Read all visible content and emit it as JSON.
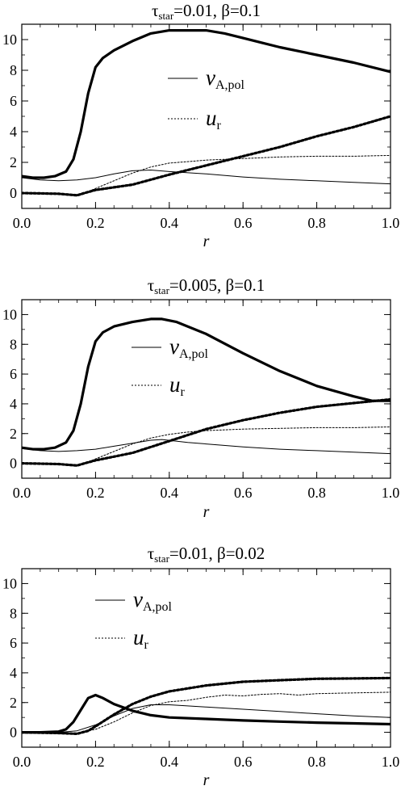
{
  "chart_data": [
    {
      "type": "line",
      "title": {
        "symbol": "τ",
        "sub": "star",
        "rest": "=0.01, β=0.1"
      },
      "xlabel": "r",
      "ylabel": "",
      "xlim": [
        0.0,
        1.0
      ],
      "ylim": [
        -1,
        11
      ],
      "xticks": [
        "0.0",
        "0.2",
        "0.4",
        "0.6",
        "0.8",
        "1.0"
      ],
      "yticks": [
        "0",
        "2",
        "4",
        "6",
        "8",
        "10"
      ],
      "legend": [
        {
          "main": "v",
          "sub": "A,pol",
          "style": "solid"
        },
        {
          "main": "u",
          "sub": "r",
          "style": "dotted"
        }
      ],
      "series": [
        {
          "name": "v_A,pol",
          "style": "solid",
          "weight": "thick",
          "x": [
            0.0,
            0.03,
            0.06,
            0.09,
            0.12,
            0.14,
            0.16,
            0.18,
            0.2,
            0.22,
            0.25,
            0.3,
            0.35,
            0.4,
            0.45,
            0.5,
            0.55,
            0.6,
            0.65,
            0.7,
            0.8,
            0.9,
            1.0
          ],
          "y": [
            1.1,
            1.0,
            1.0,
            1.1,
            1.4,
            2.2,
            4.0,
            6.5,
            8.2,
            8.8,
            9.3,
            9.9,
            10.4,
            10.6,
            10.6,
            10.6,
            10.4,
            10.1,
            9.8,
            9.5,
            9.0,
            8.5,
            7.9
          ]
        },
        {
          "name": "v_A,pol",
          "style": "solid",
          "weight": "thin",
          "x": [
            0.0,
            0.05,
            0.1,
            0.15,
            0.2,
            0.25,
            0.3,
            0.35,
            0.4,
            0.5,
            0.6,
            0.7,
            0.8,
            0.9,
            1.0
          ],
          "y": [
            1.0,
            0.85,
            0.8,
            0.85,
            1.0,
            1.25,
            1.45,
            1.5,
            1.4,
            1.25,
            1.05,
            0.9,
            0.8,
            0.7,
            0.6
          ]
        },
        {
          "name": "u_r",
          "style": "dotted",
          "weight": "thick",
          "x": [
            0.0,
            0.05,
            0.1,
            0.15,
            0.17,
            0.2,
            0.3,
            0.4,
            0.5,
            0.6,
            0.7,
            0.8,
            0.9,
            1.0
          ],
          "y": [
            0.0,
            -0.02,
            -0.05,
            -0.15,
            0.0,
            0.2,
            0.55,
            1.2,
            1.8,
            2.4,
            3.0,
            3.7,
            4.3,
            5.0
          ]
        },
        {
          "name": "u_r",
          "style": "dotted",
          "weight": "thin",
          "x": [
            0.0,
            0.05,
            0.1,
            0.15,
            0.17,
            0.2,
            0.25,
            0.3,
            0.35,
            0.4,
            0.45,
            0.5,
            0.6,
            0.7,
            0.8,
            0.9,
            1.0
          ],
          "y": [
            0.0,
            -0.02,
            -0.05,
            -0.1,
            0.0,
            0.3,
            0.8,
            1.3,
            1.7,
            1.95,
            2.05,
            2.15,
            2.25,
            2.35,
            2.4,
            2.4,
            2.45
          ]
        }
      ]
    },
    {
      "type": "line",
      "title": {
        "symbol": "τ",
        "sub": "star",
        "rest": "=0.005, β=0.1"
      },
      "xlabel": "r",
      "ylabel": "",
      "xlim": [
        0.0,
        1.0
      ],
      "ylim": [
        -1,
        11
      ],
      "xticks": [
        "0.0",
        "0.2",
        "0.4",
        "0.6",
        "0.8",
        "1.0"
      ],
      "yticks": [
        "0",
        "2",
        "4",
        "6",
        "8",
        "10"
      ],
      "legend": [
        {
          "main": "v",
          "sub": "A,pol",
          "style": "solid"
        },
        {
          "main": "u",
          "sub": "r",
          "style": "dotted"
        }
      ],
      "series": [
        {
          "name": "v_A,pol",
          "style": "solid",
          "weight": "thick",
          "x": [
            0.0,
            0.03,
            0.06,
            0.09,
            0.12,
            0.14,
            0.16,
            0.18,
            0.2,
            0.22,
            0.25,
            0.3,
            0.35,
            0.38,
            0.42,
            0.5,
            0.6,
            0.7,
            0.8,
            0.9,
            0.95,
            1.0
          ],
          "y": [
            1.05,
            0.95,
            0.95,
            1.05,
            1.4,
            2.2,
            4.0,
            6.5,
            8.2,
            8.8,
            9.2,
            9.5,
            9.7,
            9.7,
            9.5,
            8.7,
            7.4,
            6.2,
            5.2,
            4.5,
            4.2,
            4.2
          ]
        },
        {
          "name": "v_A,pol",
          "style": "solid",
          "weight": "thin",
          "x": [
            0.0,
            0.05,
            0.1,
            0.15,
            0.2,
            0.25,
            0.3,
            0.35,
            0.38,
            0.45,
            0.5,
            0.6,
            0.7,
            0.8,
            0.9,
            1.0
          ],
          "y": [
            1.0,
            0.85,
            0.8,
            0.85,
            0.95,
            1.15,
            1.35,
            1.55,
            1.6,
            1.4,
            1.3,
            1.1,
            0.95,
            0.85,
            0.75,
            0.65
          ]
        },
        {
          "name": "u_r",
          "style": "dotted",
          "weight": "thick",
          "x": [
            0.0,
            0.05,
            0.1,
            0.15,
            0.17,
            0.2,
            0.3,
            0.4,
            0.5,
            0.6,
            0.7,
            0.8,
            0.9,
            1.0
          ],
          "y": [
            0.0,
            -0.02,
            -0.05,
            -0.15,
            0.0,
            0.2,
            0.7,
            1.5,
            2.3,
            2.9,
            3.4,
            3.8,
            4.05,
            4.3
          ]
        },
        {
          "name": "u_r",
          "style": "dotted",
          "weight": "thin",
          "x": [
            0.0,
            0.05,
            0.1,
            0.15,
            0.17,
            0.2,
            0.25,
            0.3,
            0.35,
            0.4,
            0.45,
            0.5,
            0.6,
            0.7,
            0.8,
            0.9,
            1.0
          ],
          "y": [
            0.0,
            -0.02,
            -0.05,
            -0.1,
            0.0,
            0.3,
            0.8,
            1.3,
            1.7,
            1.95,
            2.1,
            2.2,
            2.3,
            2.35,
            2.4,
            2.4,
            2.45
          ]
        }
      ]
    },
    {
      "type": "line",
      "title": {
        "symbol": "τ",
        "sub": "star",
        "rest": "=0.01, β=0.02"
      },
      "xlabel": "r",
      "ylabel": "",
      "xlim": [
        0.0,
        1.0
      ],
      "ylim": [
        -1,
        11
      ],
      "xticks": [
        "0.0",
        "0.2",
        "0.4",
        "0.6",
        "0.8",
        "1.0"
      ],
      "yticks": [
        "0",
        "2",
        "4",
        "6",
        "8",
        "10"
      ],
      "legend": [
        {
          "main": "v",
          "sub": "A,pol",
          "style": "solid"
        },
        {
          "main": "u",
          "sub": "r",
          "style": "dotted"
        }
      ],
      "series": [
        {
          "name": "v_A,pol",
          "style": "solid",
          "weight": "thick",
          "x": [
            0.0,
            0.05,
            0.1,
            0.12,
            0.14,
            0.16,
            0.18,
            0.2,
            0.22,
            0.25,
            0.3,
            0.35,
            0.4,
            0.5,
            0.6,
            0.7,
            0.8,
            0.9,
            1.0
          ],
          "y": [
            0.0,
            0.0,
            0.05,
            0.2,
            0.7,
            1.5,
            2.3,
            2.5,
            2.3,
            1.9,
            1.45,
            1.15,
            1.0,
            0.9,
            0.8,
            0.72,
            0.65,
            0.6,
            0.55
          ]
        },
        {
          "name": "v_A,pol",
          "style": "solid",
          "weight": "thin",
          "x": [
            0.0,
            0.1,
            0.15,
            0.2,
            0.25,
            0.3,
            0.35,
            0.4,
            0.5,
            0.6,
            0.7,
            0.8,
            0.9,
            1.0
          ],
          "y": [
            0.0,
            0.0,
            0.1,
            0.5,
            1.1,
            1.6,
            1.85,
            1.85,
            1.7,
            1.55,
            1.4,
            1.25,
            1.1,
            1.0
          ]
        },
        {
          "name": "u_r",
          "style": "dotted",
          "weight": "thick",
          "x": [
            0.0,
            0.1,
            0.15,
            0.18,
            0.2,
            0.25,
            0.3,
            0.35,
            0.4,
            0.5,
            0.6,
            0.7,
            0.8,
            0.9,
            1.0
          ],
          "y": [
            0.0,
            -0.05,
            -0.1,
            0.1,
            0.4,
            1.2,
            1.9,
            2.4,
            2.75,
            3.15,
            3.4,
            3.5,
            3.6,
            3.62,
            3.65
          ]
        },
        {
          "name": "u_r",
          "style": "dotted",
          "weight": "thin",
          "x": [
            0.0,
            0.1,
            0.15,
            0.2,
            0.25,
            0.3,
            0.35,
            0.4,
            0.45,
            0.5,
            0.55,
            0.6,
            0.65,
            0.7,
            0.75,
            0.8,
            0.9,
            1.0
          ],
          "y": [
            0.0,
            -0.05,
            -0.05,
            0.2,
            0.7,
            1.3,
            1.8,
            2.05,
            2.15,
            2.35,
            2.5,
            2.45,
            2.55,
            2.6,
            2.5,
            2.6,
            2.65,
            2.7
          ]
        }
      ]
    }
  ]
}
